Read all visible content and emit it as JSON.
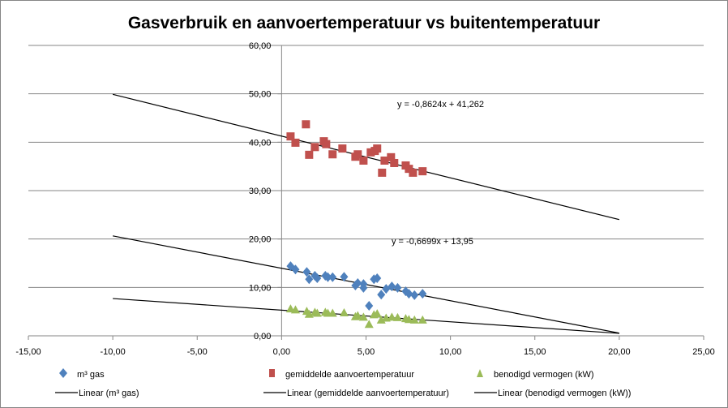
{
  "chart_data": {
    "type": "scatter",
    "title": "Gasverbruik en aanvoertemperatuur vs buitentemperatuur",
    "xlabel": "",
    "ylabel": "",
    "xlim": [
      -15,
      25
    ],
    "ylim": [
      0,
      60
    ],
    "x_ticks": [
      "-15,00",
      "-10,00",
      "-5,00",
      "0,00",
      "5,00",
      "10,00",
      "15,00",
      "20,00",
      "25,00"
    ],
    "y_ticks": [
      "0,00",
      "10,00",
      "20,00",
      "30,00",
      "40,00",
      "50,00",
      "60,00"
    ],
    "x_tick_values": [
      -15,
      -10,
      -5,
      0,
      5,
      10,
      15,
      20,
      25
    ],
    "y_tick_values": [
      0,
      10,
      20,
      30,
      40,
      50,
      60
    ],
    "grid": "horizontal",
    "legend_position": "bottom",
    "series": [
      {
        "name": "m³ gas",
        "marker": "diamond",
        "color": "#4f81bd",
        "x": [
          0.53,
          0.82,
          1.49,
          1.63,
          1.97,
          2.11,
          2.59,
          2.74,
          3.02,
          3.7,
          4.37,
          4.51,
          4.85,
          4.85,
          5.18,
          5.47,
          5.66,
          5.9,
          6.19,
          6.53,
          6.87,
          7.35,
          7.54,
          7.87,
          8.35
        ],
        "y": [
          14.4,
          13.7,
          13.2,
          11.7,
          12.4,
          11.9,
          12.4,
          12.1,
          12.1,
          12.2,
          10.4,
          10.9,
          9.9,
          10.7,
          6.2,
          11.7,
          11.9,
          8.5,
          9.7,
          10.2,
          9.9,
          9.2,
          8.7,
          8.4,
          8.7
        ]
      },
      {
        "name": "gemiddelde aanvoertemperatuur",
        "marker": "square",
        "color": "#c0504d",
        "x": [
          0.53,
          0.82,
          1.44,
          1.63,
          1.97,
          2.5,
          2.64,
          3.02,
          3.6,
          4.37,
          4.51,
          4.85,
          5.28,
          5.52,
          5.66,
          5.95,
          6.1,
          6.48,
          6.67,
          7.35,
          7.54,
          7.78,
          8.35
        ],
        "y": [
          41.2,
          39.9,
          43.7,
          37.4,
          39.0,
          40.2,
          39.6,
          37.5,
          38.7,
          37.0,
          37.5,
          36.2,
          37.9,
          38.2,
          38.7,
          33.7,
          36.2,
          36.9,
          35.7,
          35.2,
          34.5,
          33.7,
          34.0
        ]
      },
      {
        "name": "benodigd vermogen (kW)",
        "marker": "triangle",
        "color": "#9bbb59",
        "x": [
          0.53,
          0.82,
          1.49,
          1.63,
          1.97,
          2.11,
          2.59,
          2.74,
          3.02,
          3.7,
          4.37,
          4.51,
          4.85,
          5.18,
          5.47,
          5.66,
          5.9,
          6.19,
          6.53,
          6.87,
          7.35,
          7.54,
          7.87,
          8.35
        ],
        "y": [
          5.5,
          5.3,
          5.0,
          4.4,
          4.8,
          4.6,
          4.8,
          4.6,
          4.6,
          4.7,
          3.9,
          4.1,
          3.8,
          2.3,
          4.3,
          4.5,
          3.2,
          3.6,
          3.8,
          3.7,
          3.5,
          3.3,
          3.2,
          3.2
        ]
      }
    ],
    "trendlines": [
      {
        "name": "Linear (m³ gas)",
        "slope": -0.6699,
        "intercept": 13.95,
        "x_range": [
          -10,
          20
        ],
        "label": "y = -0,6699x + 13,95"
      },
      {
        "name": "Linear (gemiddelde aanvoertemperatuur)",
        "slope": -0.8624,
        "intercept": 41.262,
        "x_range": [
          -10,
          20
        ],
        "label": "y = -0,8624x + 41,262"
      },
      {
        "name": "Linear (benodigd vermogen (kW))",
        "slope": -0.24,
        "intercept": 5.3,
        "x_range": [
          -10,
          20
        ],
        "label": ""
      }
    ]
  }
}
